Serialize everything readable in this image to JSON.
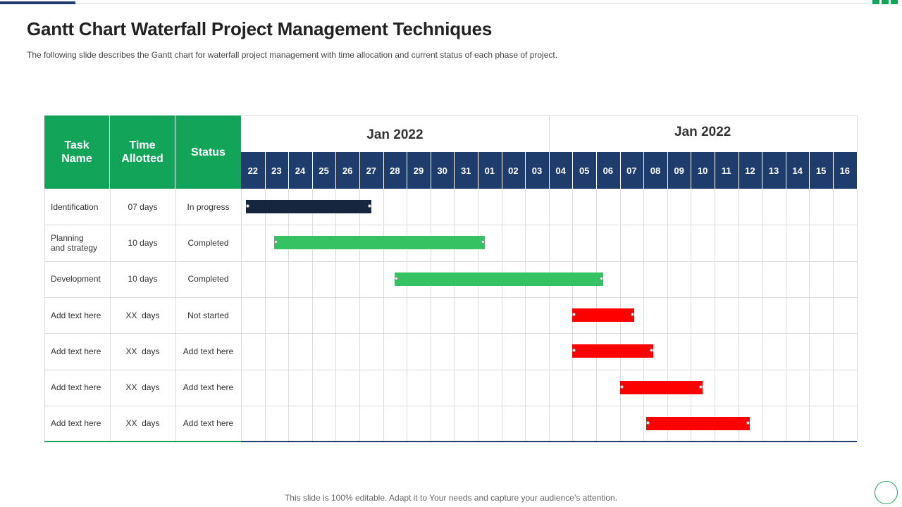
{
  "title": "Gantt Chart Waterfall Project Management Techniques",
  "subtitle": "The following slide describes the Gantt chart for waterfall project management with time allocation  and current status of each phase of project.",
  "footer": "This slide is 100% editable. Adapt it to Your needs and capture your audience’s attention.",
  "colors": {
    "green": "#12a559",
    "navy": "#1f3d6c",
    "completed": "#35c263",
    "not_started": "#ff0000",
    "in_progress": "#16263f"
  },
  "chart_data": {
    "type": "table",
    "columns": [
      "Task Name",
      "Time Allotted",
      "Status"
    ],
    "months": [
      {
        "label": "Jan 2022",
        "start": 0,
        "span": 13
      },
      {
        "label": "Jan 2022",
        "start": 13,
        "span": 13
      }
    ],
    "days": [
      "22",
      "23",
      "24",
      "25",
      "26",
      "27",
      "28",
      "29",
      "30",
      "31",
      "01",
      "02",
      "03",
      "04",
      "05",
      "06",
      "07",
      "08",
      "09",
      "10",
      "11",
      "12",
      "13",
      "14",
      "15",
      "16"
    ],
    "tasks": [
      {
        "name": "Identification",
        "time": "07 days",
        "status": "In progress",
        "start": 0.2,
        "end": 5.5,
        "color": "#16263f"
      },
      {
        "name": "Planning\nand strategy",
        "time": "10 days",
        "status": "Completed",
        "start": 1.4,
        "end": 10.3,
        "color": "#35c263"
      },
      {
        "name": "Development",
        "time": "10 days",
        "status": "Completed",
        "start": 6.5,
        "end": 15.3,
        "color": "#35c263"
      },
      {
        "name": "Add text here",
        "time": "XX  days",
        "status": "Not started",
        "start": 14.0,
        "end": 16.6,
        "color": "#ff0000"
      },
      {
        "name": "Add text here",
        "time": "XX  days",
        "status": "Add text here",
        "start": 14.0,
        "end": 17.4,
        "color": "#ff0000"
      },
      {
        "name": "Add text here",
        "time": "XX  days",
        "status": "Add text here",
        "start": 16.0,
        "end": 19.5,
        "color": "#ff0000"
      },
      {
        "name": "Add text here",
        "time": "XX  days",
        "status": "Add text here",
        "start": 17.1,
        "end": 21.5,
        "color": "#ff0000"
      }
    ]
  }
}
